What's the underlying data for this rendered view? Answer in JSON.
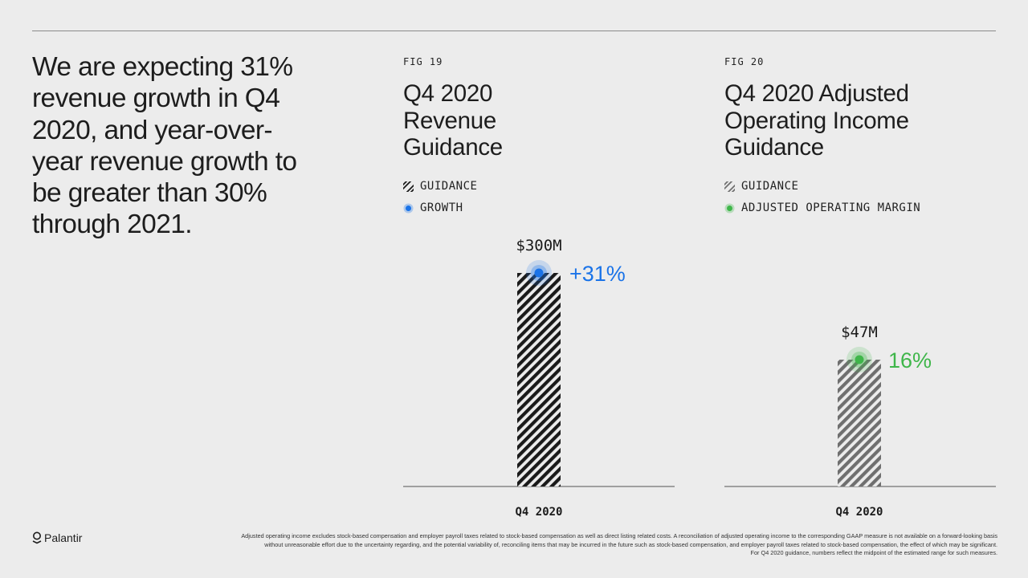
{
  "headline": "We are expecting 31% revenue growth in Q4 2020, and year-over-year revenue growth to be greater than 30% through 2021.",
  "colors": {
    "background": "#ececec",
    "growth": "#1a73e8",
    "margin": "#3fb64a",
    "revenue_bar_stripe": "#1a1a1a",
    "income_bar_stripe": "#6f6f6f"
  },
  "figures": [
    {
      "fig_label": "FIG 19",
      "title_lines": [
        "Q4 2020",
        "Revenue",
        "Guidance"
      ],
      "legend": [
        {
          "label": "GUIDANCE",
          "icon": "hatched-square-icon"
        },
        {
          "label": "GROWTH",
          "icon": "blue-dot-icon"
        }
      ]
    },
    {
      "fig_label": "FIG 20",
      "title_lines": [
        "Q4 2020 Adjusted",
        "Operating Income",
        "Guidance"
      ],
      "legend": [
        {
          "label": "GUIDANCE",
          "icon": "hatched-square-icon"
        },
        {
          "label": "ADJUSTED OPERATING MARGIN",
          "icon": "green-dot-icon"
        }
      ]
    }
  ],
  "chart_data": [
    {
      "type": "bar",
      "categories": [
        "Q4 2020"
      ],
      "series": [
        {
          "name": "GUIDANCE",
          "values": [
            300
          ]
        }
      ],
      "value_label": "$300M",
      "unit": "$M",
      "marker": {
        "name": "GROWTH",
        "label": "+31%",
        "value": 31
      },
      "legend_position": "top-left",
      "grid": false
    },
    {
      "type": "bar",
      "categories": [
        "Q4 2020"
      ],
      "series": [
        {
          "name": "GUIDANCE",
          "values": [
            47
          ]
        }
      ],
      "value_label": "$47M",
      "unit": "$M",
      "marker": {
        "name": "ADJUSTED OPERATING MARGIN",
        "label": "16%",
        "value": 16
      },
      "legend_position": "top-left",
      "grid": false
    }
  ],
  "footer": {
    "logo_text": "Palantir",
    "footnote_lines": [
      "Adjusted operating income excludes stock-based compensation and employer payroll taxes related to stock-based compensation as well as direct listing related costs. A reconciliation of adjusted operating income to the corresponding GAAP measure is not available on a forward-looking basis",
      "without unreasonable effort due to the uncertainty regarding, and the potential variability of, reconciling items that may be incurred in the future such as stock-based compensation, and employer payroll taxes related to stock-based compensation, the effect of which may be significant.",
      "For Q4 2020 guidance, numbers reflect the midpoint of the estimated range for such measures."
    ]
  }
}
